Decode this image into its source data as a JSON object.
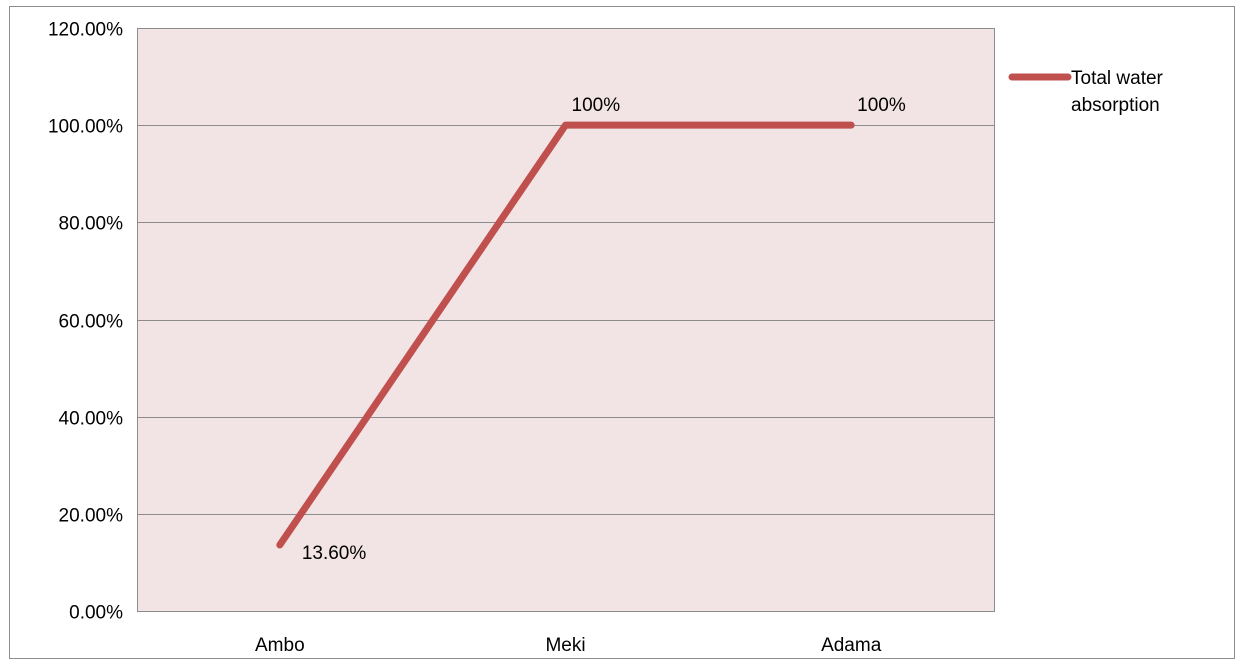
{
  "chart_data": {
    "type": "line",
    "categories": [
      "Ambo",
      "Meki",
      "Adama"
    ],
    "series": [
      {
        "name": "Total water absorption",
        "values": [
          0.136,
          1.0,
          1.0
        ],
        "data_labels": [
          "13.60%",
          "100%",
          "100%"
        ],
        "color": "#c0504d"
      }
    ],
    "ylim": [
      0,
      1.2
    ],
    "y_ticks": [
      0,
      0.2,
      0.4,
      0.6,
      0.8,
      1.0,
      1.2
    ],
    "y_tick_labels": [
      "0.00%",
      "20.00%",
      "40.00%",
      "60.00%",
      "80.00%",
      "100.00%",
      "120.00%"
    ],
    "grid": true,
    "legend_position": "right",
    "legend_lines": [
      "Total water",
      "absorption"
    ],
    "plot_background": "#f2e4e4",
    "gridline_color": "#8c8c8c"
  }
}
